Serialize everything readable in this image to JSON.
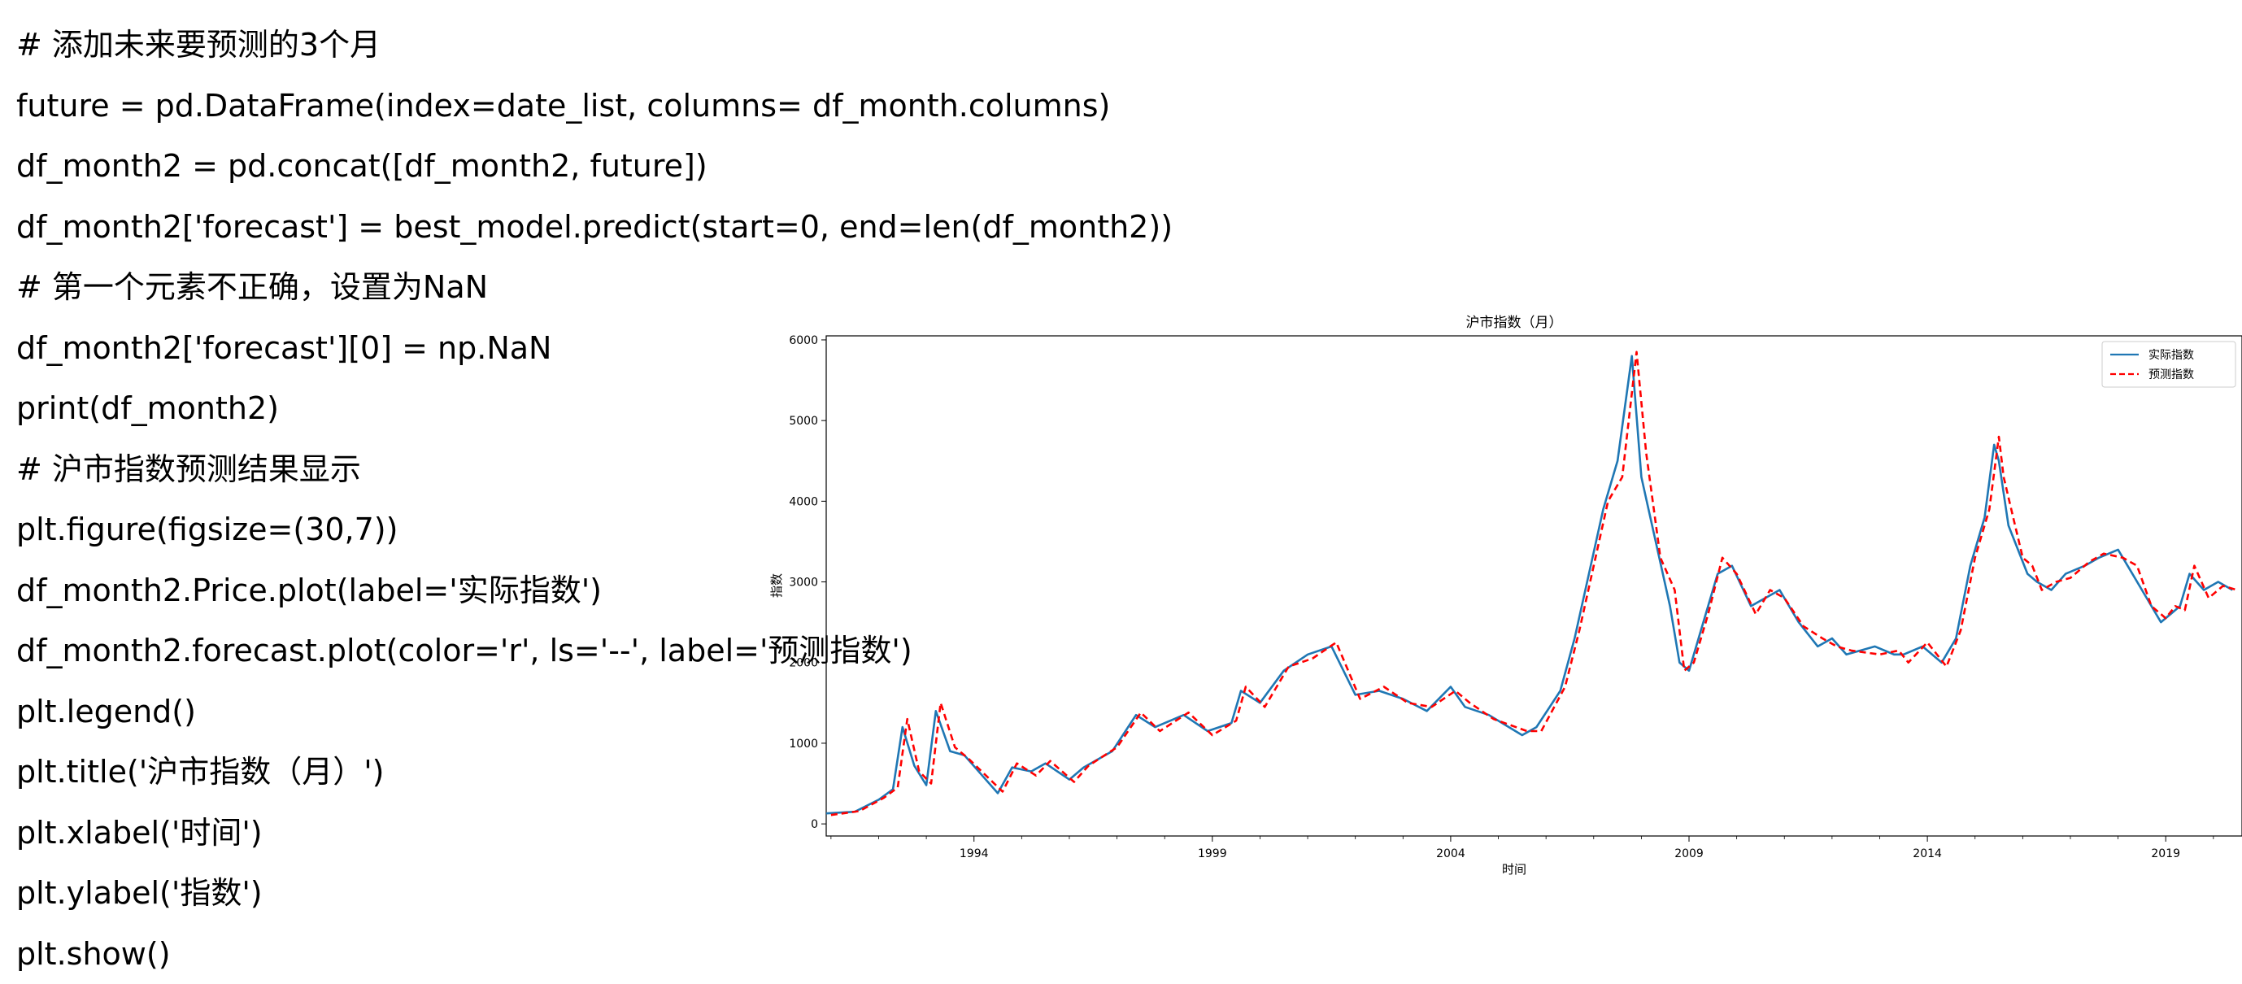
{
  "code": {
    "lines": [
      "# 添加未来要预测的3个月",
      "future = pd.DataFrame(index=date_list, columns= df_month.columns)",
      "df_month2 = pd.concat([df_month2, future])",
      "df_month2['forecast'] = best_model.predict(start=0, end=len(df_month2))",
      "# 第一个元素不正确，设置为NaN",
      "df_month2['forecast'][0] = np.NaN",
      "print(df_month2)",
      "# 沪市指数预测结果显示",
      "plt.figure(figsize=(30,7))",
      "df_month2.Price.plot(label='实际指数')",
      "df_month2.forecast.plot(color='r', ls='--', label='预测指数')",
      "plt.legend()",
      "plt.title('沪市指数（月）')",
      "plt.xlabel('时间')",
      "plt.ylabel('指数')",
      "plt.show()"
    ]
  },
  "chart_data": {
    "type": "line",
    "title": "沪市指数（月）",
    "xlabel": "时间",
    "ylabel": "指数",
    "xlim": [
      1990.9,
      2020.6
    ],
    "ylim": [
      -150,
      6050
    ],
    "xticks": [
      1994,
      1999,
      2004,
      2009,
      2014,
      2019
    ],
    "yticks": [
      0,
      1000,
      2000,
      3000,
      4000,
      5000,
      6000
    ],
    "legend_position": "top-right",
    "grid": false,
    "colors": {
      "actual": "#1f77b4",
      "forecast": "#ff0000"
    },
    "series": [
      {
        "name": "实际指数",
        "style": "solid",
        "x": [
          1990.9,
          1991.5,
          1992.0,
          1992.3,
          1992.5,
          1992.75,
          1993.0,
          1993.2,
          1993.5,
          1993.8,
          1994.5,
          1994.8,
          1995.2,
          1995.5,
          1996.0,
          1996.3,
          1996.9,
          1997.4,
          1997.8,
          1998.4,
          1998.9,
          1999.4,
          1999.6,
          2000.0,
          2000.5,
          2001.0,
          2001.5,
          2002.0,
          2002.5,
          2003.0,
          2003.5,
          2004.0,
          2004.3,
          2004.8,
          2005.5,
          2005.8,
          2006.3,
          2006.6,
          2006.9,
          2007.2,
          2007.5,
          2007.8,
          2008.0,
          2008.3,
          2008.6,
          2008.8,
          2009.0,
          2009.3,
          2009.6,
          2009.9,
          2010.3,
          2010.6,
          2010.9,
          2011.3,
          2011.7,
          2012.0,
          2012.3,
          2012.9,
          2013.3,
          2013.5,
          2013.9,
          2014.3,
          2014.6,
          2014.9,
          2015.2,
          2015.4,
          2015.5,
          2015.7,
          2015.9,
          2016.1,
          2016.3,
          2016.6,
          2016.9,
          2017.3,
          2017.6,
          2018.0,
          2018.3,
          2018.6,
          2018.9,
          2019.1,
          2019.3,
          2019.5,
          2019.8,
          2020.1,
          2020.4
        ],
        "values": [
          130,
          150,
          300,
          430,
          1200,
          720,
          480,
          1400,
          900,
          850,
          380,
          700,
          650,
          750,
          550,
          700,
          900,
          1350,
          1200,
          1350,
          1150,
          1250,
          1650,
          1500,
          1900,
          2100,
          2200,
          1600,
          1650,
          1550,
          1400,
          1700,
          1450,
          1350,
          1100,
          1200,
          1650,
          2300,
          3100,
          3900,
          4500,
          5800,
          4300,
          3500,
          2700,
          2000,
          1900,
          2500,
          3100,
          3200,
          2700,
          2800,
          2900,
          2500,
          2200,
          2300,
          2100,
          2200,
          2100,
          2100,
          2200,
          2000,
          2300,
          3200,
          3800,
          4700,
          4500,
          3700,
          3400,
          3100,
          3000,
          2900,
          3100,
          3200,
          3300,
          3400,
          3100,
          2800,
          2500,
          2600,
          2700,
          3100,
          2900,
          3000,
          2900
        ]
      },
      {
        "name": "预测指数",
        "style": "dashed",
        "x": [
          1991.0,
          1991.6,
          1992.1,
          1992.4,
          1992.6,
          1992.85,
          1993.1,
          1993.3,
          1993.6,
          1993.9,
          1994.6,
          1994.9,
          1995.3,
          1995.6,
          1996.1,
          1996.4,
          1997.0,
          1997.5,
          1997.9,
          1998.5,
          1999.0,
          1999.5,
          1999.7,
          2000.1,
          2000.6,
          2001.1,
          2001.6,
          2002.1,
          2002.6,
          2003.1,
          2003.6,
          2004.1,
          2004.4,
          2004.9,
          2005.6,
          2005.9,
          2006.4,
          2006.7,
          2007.0,
          2007.3,
          2007.6,
          2007.9,
          2008.1,
          2008.4,
          2008.7,
          2008.9,
          2009.1,
          2009.4,
          2009.7,
          2010.0,
          2010.4,
          2010.7,
          2011.0,
          2011.4,
          2011.8,
          2012.1,
          2012.4,
          2013.0,
          2013.4,
          2013.6,
          2014.0,
          2014.4,
          2014.7,
          2015.0,
          2015.3,
          2015.5,
          2015.6,
          2015.8,
          2016.0,
          2016.2,
          2016.4,
          2016.7,
          2017.0,
          2017.4,
          2017.7,
          2018.1,
          2018.4,
          2018.7,
          2019.0,
          2019.2,
          2019.4,
          2019.6,
          2019.9,
          2020.2,
          2020.5
        ],
        "values": [
          110,
          160,
          320,
          450,
          1300,
          650,
          500,
          1500,
          950,
          800,
          400,
          750,
          600,
          780,
          520,
          720,
          950,
          1380,
          1150,
          1380,
          1100,
          1280,
          1700,
          1450,
          1950,
          2050,
          2250,
          1550,
          1700,
          1500,
          1450,
          1650,
          1500,
          1300,
          1150,
          1150,
          1700,
          2400,
          3200,
          4000,
          4300,
          5850,
          4600,
          3300,
          2900,
          1900,
          2000,
          2600,
          3300,
          3100,
          2600,
          2900,
          2800,
          2450,
          2300,
          2200,
          2150,
          2100,
          2150,
          2000,
          2250,
          1950,
          2400,
          3300,
          3900,
          4800,
          4300,
          3800,
          3300,
          3200,
          2900,
          3000,
          3050,
          3250,
          3350,
          3300,
          3200,
          2700,
          2550,
          2700,
          2650,
          3200,
          2800,
          2950,
          2900
        ]
      }
    ]
  }
}
